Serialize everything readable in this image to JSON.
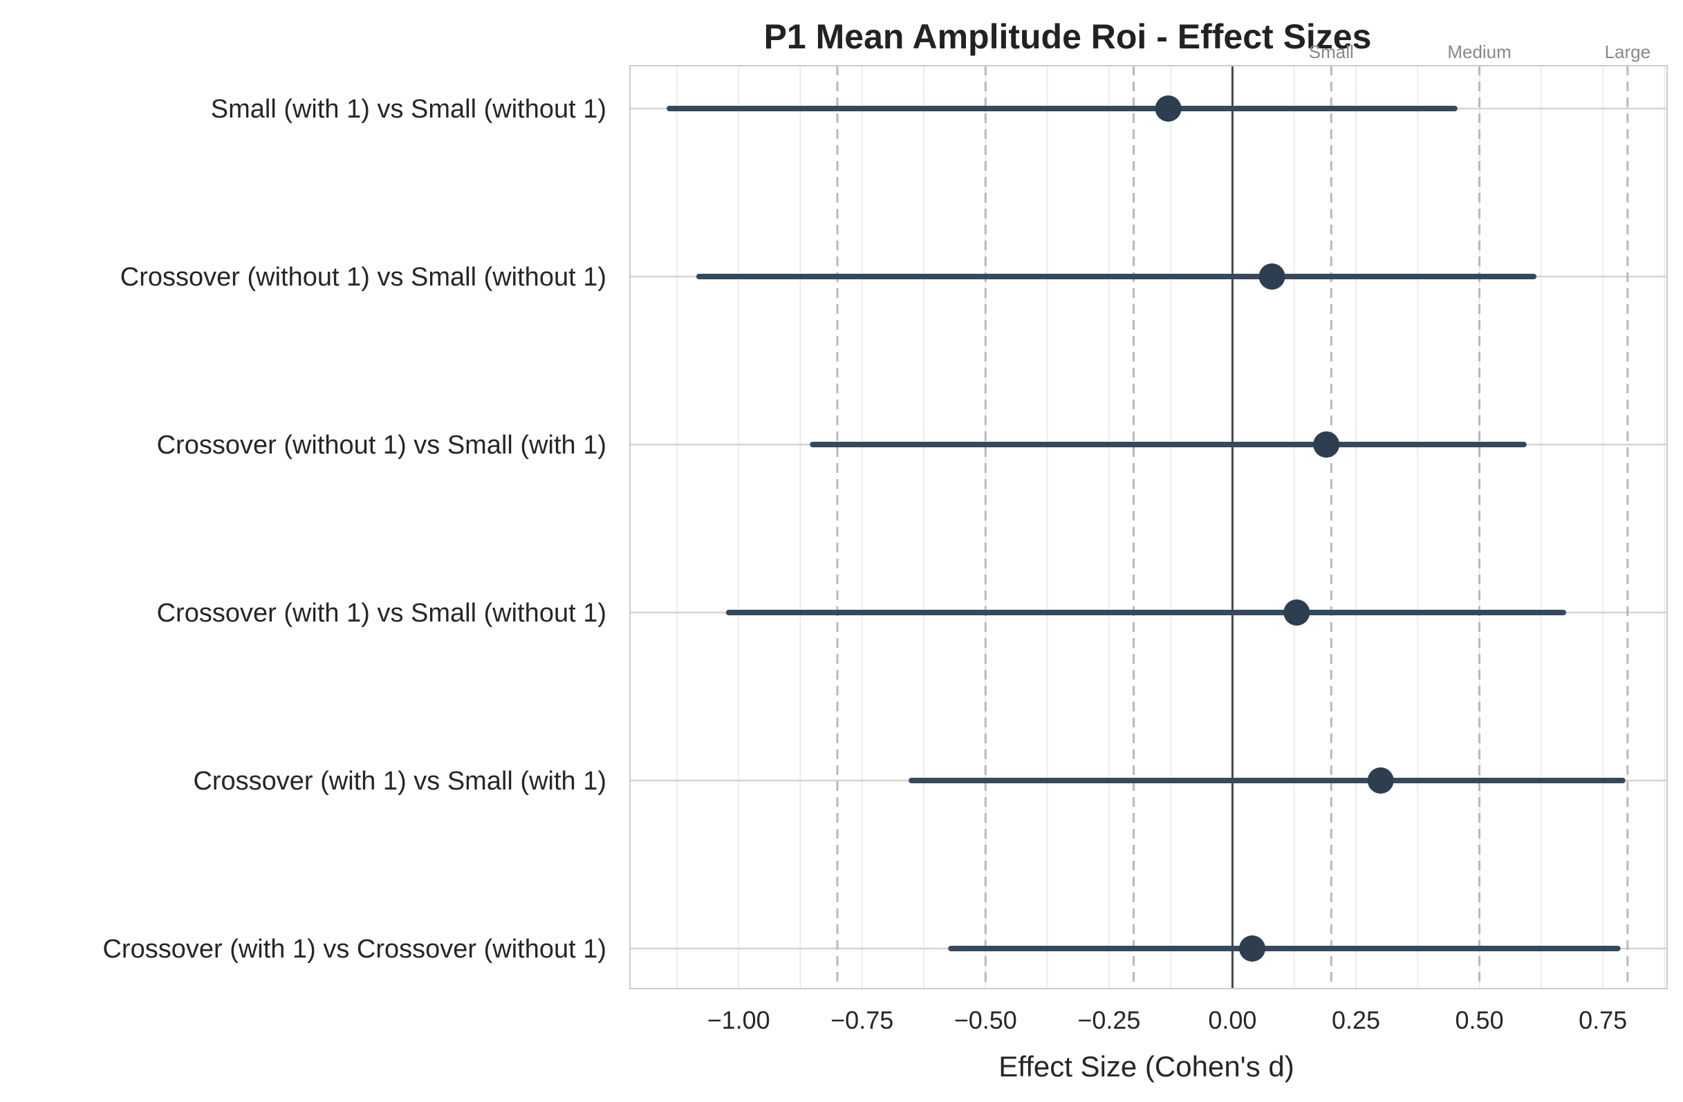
{
  "chart_data": {
    "type": "forest",
    "title": "P1 Mean Amplitude Roi - Effect Sizes",
    "xlabel": "Effect Size (Cohen's d)",
    "xlim": [
      -1.22,
      0.88
    ],
    "xticks": [
      -1.0,
      -0.75,
      -0.5,
      -0.25,
      0.0,
      0.25,
      0.5,
      0.75
    ],
    "xtick_labels": [
      "−1.00",
      "−0.75",
      "−0.50",
      "−0.25",
      "0.00",
      "0.25",
      "0.50",
      "0.75"
    ],
    "grid": true,
    "marker_color": "#2c3e50",
    "line_color": "#34495e",
    "zero_line": 0.0,
    "reference_lines": [
      {
        "label": "Small",
        "value": 0.2
      },
      {
        "label": "Medium",
        "value": 0.5
      },
      {
        "label": "Large",
        "value": 0.8
      }
    ],
    "mirrored_reference_lines": [
      -0.2,
      -0.5,
      -0.8
    ],
    "comparisons": [
      {
        "label": "Small (with 1) vs Small (without 1)",
        "d": -0.13,
        "ci_low": -1.14,
        "ci_high": 0.45
      },
      {
        "label": "Crossover (without 1) vs Small (without 1)",
        "d": 0.08,
        "ci_low": -1.08,
        "ci_high": 0.61
      },
      {
        "label": "Crossover (without 1) vs Small (with 1)",
        "d": 0.19,
        "ci_low": -0.85,
        "ci_high": 0.59
      },
      {
        "label": "Crossover (with 1) vs Small (without 1)",
        "d": 0.13,
        "ci_low": -1.02,
        "ci_high": 0.67
      },
      {
        "label": "Crossover (with 1) vs Small (with 1)",
        "d": 0.3,
        "ci_low": -0.65,
        "ci_high": 0.79
      },
      {
        "label": "Crossover (with 1) vs Crossover (without 1)",
        "d": 0.04,
        "ci_low": -0.57,
        "ci_high": 0.78
      }
    ]
  }
}
